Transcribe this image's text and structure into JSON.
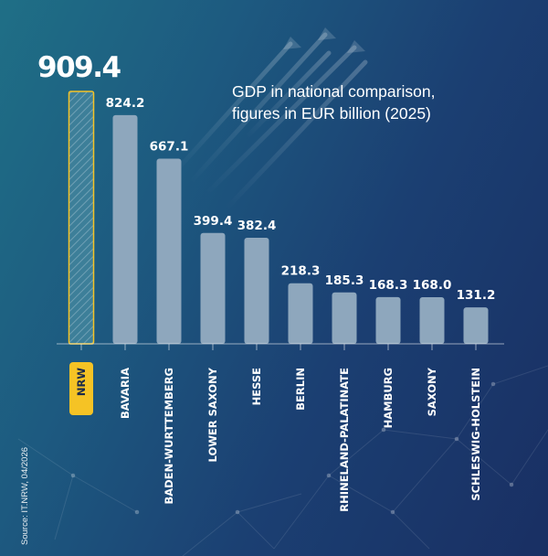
{
  "subtitle": {
    "line1": "GDP in national comparison,",
    "line2": "figures in EUR billion (2025)"
  },
  "source": "Source: IT.NRW, 04/2026",
  "colors": {
    "bar": "#8ea7bd",
    "highlight": "#f5c325",
    "text": "#ffffff",
    "background_left": "#1f6f86",
    "background_right": "#192f63"
  },
  "chart_data": {
    "type": "bar",
    "categories": [
      "NRW",
      "BAVARIA",
      "BADEN-WURTTEMBERG",
      "LOWER SAXONY",
      "HESSE",
      "BERLIN",
      "RHINELAND-PALATINATE",
      "HAMBURG",
      "SAXONY",
      "SCHLESWIG-HOLSTEIN"
    ],
    "values": [
      909.4,
      824.2,
      667.1,
      399.4,
      382.4,
      218.3,
      185.3,
      168.3,
      168.0,
      131.2
    ],
    "value_labels": [
      "909.4",
      "824.2",
      "667.1",
      "399.4",
      "382.4",
      "218.3",
      "185.3",
      "168.3",
      "168.0",
      "131.2"
    ],
    "highlight_index": 0,
    "ylim": [
      0,
      909.4
    ],
    "grid": false,
    "legend": "none"
  }
}
